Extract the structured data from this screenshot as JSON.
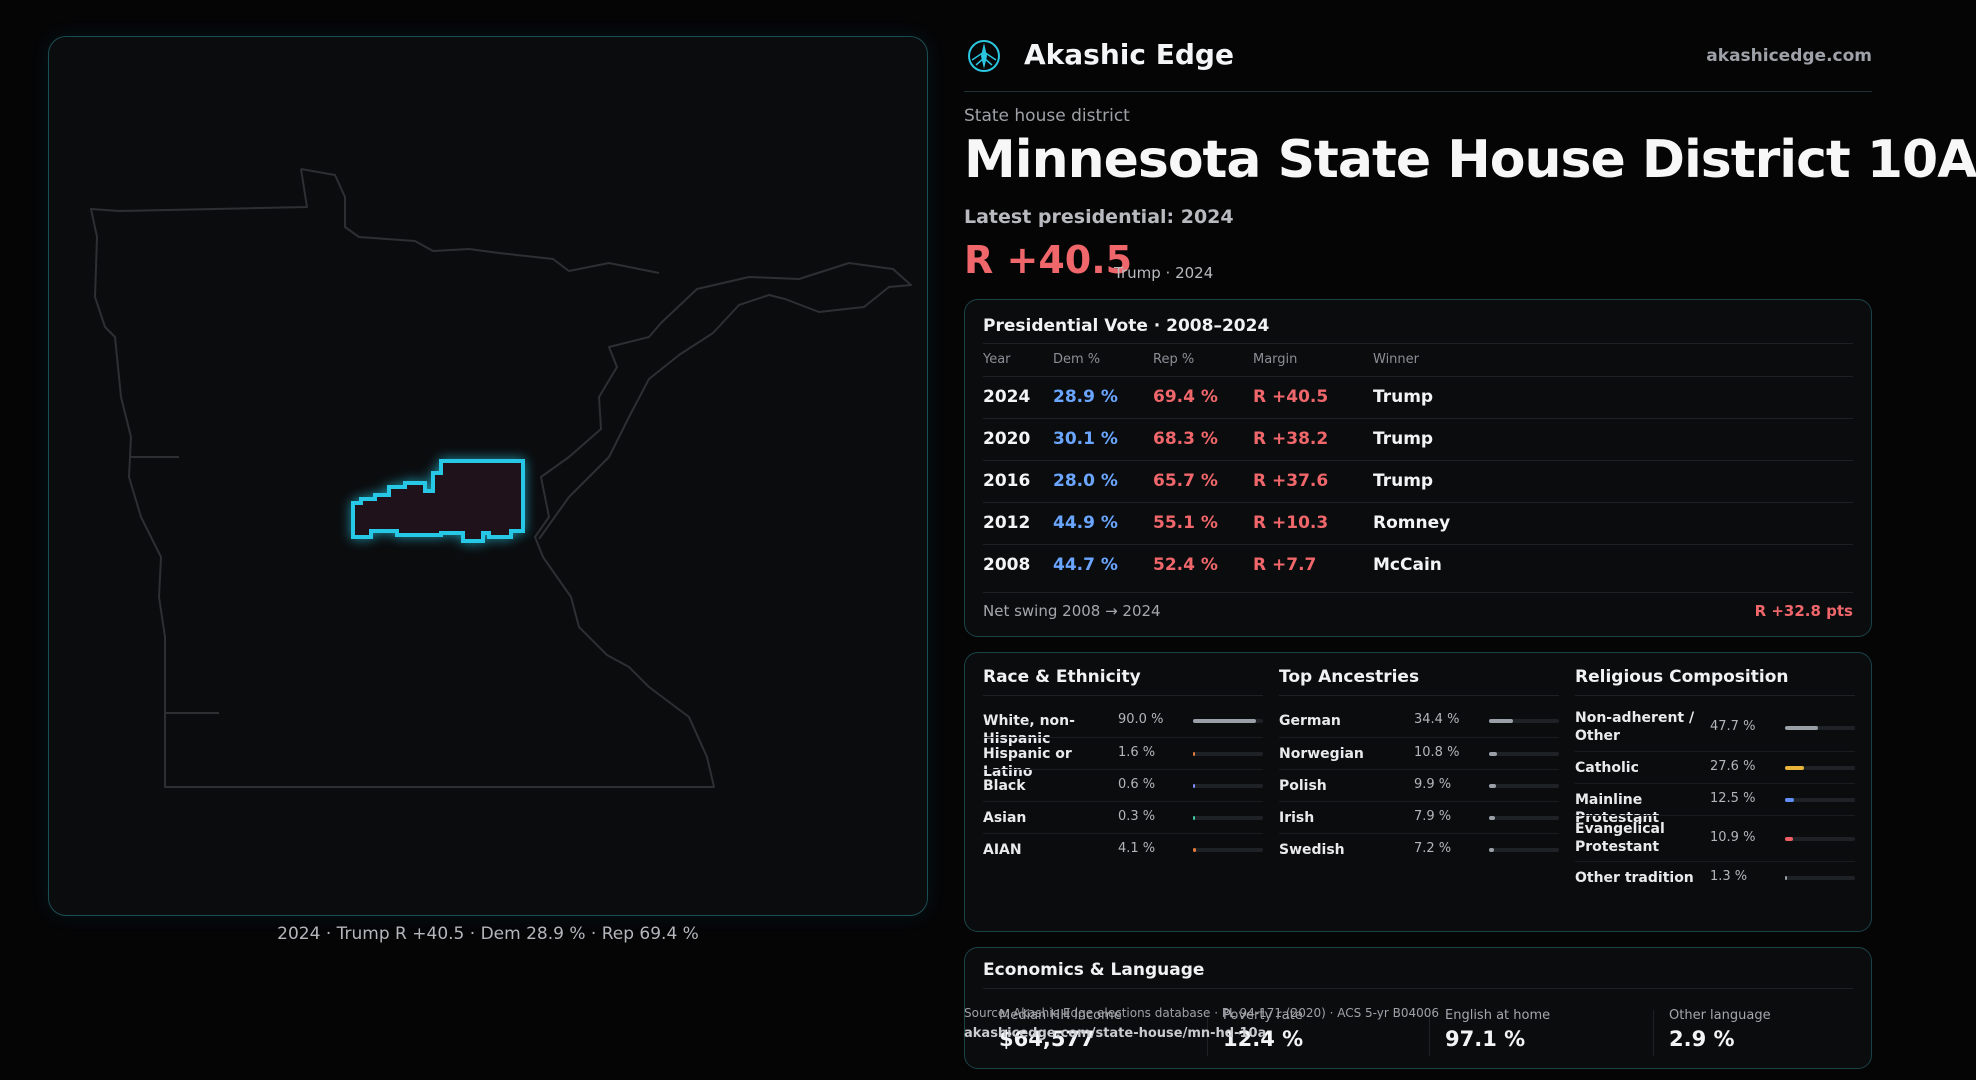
{
  "brand": {
    "name": "Akashic Edge",
    "url": "akashicedge.com",
    "logo_icon": "compass-rose-icon",
    "accent": "#2bc6e0"
  },
  "district": {
    "kicker": "State house district",
    "title": "Minnesota State House District 10A",
    "latest_label": "Latest presidential: 2024",
    "margin": "R +40.5",
    "margin_sub": "Trump · 2024"
  },
  "map": {
    "caption": "2024 · Trump R +40.5 · Dem 28.9 % · Rep 69.4 %",
    "highlight_color": "#27c7e6"
  },
  "presidential": {
    "title": "Presidential Vote · 2008–2024",
    "headers": {
      "year": "Year",
      "dem": "Dem %",
      "rep": "Rep %",
      "margin": "Margin",
      "winner": "Winner"
    },
    "rows": [
      {
        "year": "2024",
        "dem": "28.9 %",
        "rep": "69.4 %",
        "margin": "R +40.5",
        "winner": "Trump"
      },
      {
        "year": "2020",
        "dem": "30.1 %",
        "rep": "68.3 %",
        "margin": "R +38.2",
        "winner": "Trump"
      },
      {
        "year": "2016",
        "dem": "28.0 %",
        "rep": "65.7 %",
        "margin": "R +37.6",
        "winner": "Trump"
      },
      {
        "year": "2012",
        "dem": "44.9 %",
        "rep": "55.1 %",
        "margin": "R +10.3",
        "winner": "Romney"
      },
      {
        "year": "2008",
        "dem": "44.7 %",
        "rep": "52.4 %",
        "margin": "R +7.7",
        "winner": "McCain"
      }
    ],
    "swing_label": "Net swing 2008 → 2024",
    "swing_value": "R +32.8 pts"
  },
  "race": {
    "title": "Race & Ethnicity",
    "items": [
      {
        "label": "White, non-Hispanic",
        "value": "90.0 %",
        "fraction": 0.9,
        "color": "#9aa0a8"
      },
      {
        "label": "Hispanic or Latino",
        "value": "1.6 %",
        "fraction": 0.016,
        "color": "#e07a3a"
      },
      {
        "label": "Black",
        "value": "0.6 %",
        "fraction": 0.006,
        "color": "#7b8cff"
      },
      {
        "label": "Asian",
        "value": "0.3 %",
        "fraction": 0.003,
        "color": "#3fc6a4"
      },
      {
        "label": "AIAN",
        "value": "4.1 %",
        "fraction": 0.041,
        "color": "#e07a3a"
      }
    ]
  },
  "ancestry": {
    "title": "Top Ancestries",
    "items": [
      {
        "label": "German",
        "value": "34.4 %",
        "fraction": 0.344,
        "color": "#9aa0a8"
      },
      {
        "label": "Norwegian",
        "value": "10.8 %",
        "fraction": 0.108,
        "color": "#9aa0a8"
      },
      {
        "label": "Polish",
        "value": "9.9 %",
        "fraction": 0.099,
        "color": "#9aa0a8"
      },
      {
        "label": "Irish",
        "value": "7.9 %",
        "fraction": 0.079,
        "color": "#9aa0a8"
      },
      {
        "label": "Swedish",
        "value": "7.2 %",
        "fraction": 0.072,
        "color": "#9aa0a8"
      }
    ]
  },
  "religion": {
    "title": "Religious Composition",
    "items": [
      {
        "label": "Non-adherent / Other",
        "value": "47.7 %",
        "fraction": 0.477,
        "color": "#9aa0a8"
      },
      {
        "label": "Catholic",
        "value": "27.6 %",
        "fraction": 0.276,
        "color": "#e8b53a"
      },
      {
        "label": "Mainline Protestant",
        "value": "12.5 %",
        "fraction": 0.125,
        "color": "#5f8ff5"
      },
      {
        "label": "Evangelical Protestant",
        "value": "10.9 %",
        "fraction": 0.109,
        "color": "#ef5f63"
      },
      {
        "label": "Other tradition",
        "value": "1.3 %",
        "fraction": 0.013,
        "color": "#9aa0a8"
      }
    ]
  },
  "economics": {
    "title": "Economics & Language",
    "items": [
      {
        "label": "Median HH income",
        "value": "$64,577"
      },
      {
        "label": "Poverty rate",
        "value": "12.4 %"
      },
      {
        "label": "English at home",
        "value": "97.1 %"
      },
      {
        "label": "Other language",
        "value": "2.9 %"
      }
    ]
  },
  "source": {
    "text": "Source: Akashic Edge elections database · PL 94-171 (2020) · ACS 5-yr B04006",
    "url": "akashicedge.com/state-house/mn-hd-10a"
  }
}
